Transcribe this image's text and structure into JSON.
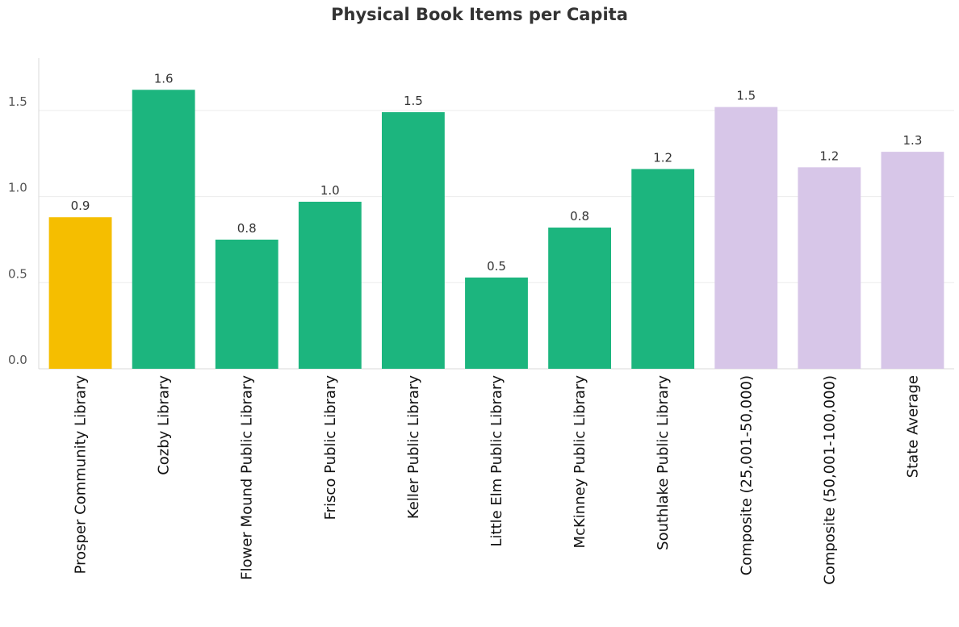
{
  "chart_data": {
    "type": "bar",
    "title": "Physical Book Items per Capita",
    "xlabel": "",
    "ylabel": "",
    "ylim": [
      0,
      1.8
    ],
    "yticks": [
      "0.0",
      "0.5",
      "1.0",
      "1.5"
    ],
    "grid": true,
    "categories": [
      "Prosper Community Library",
      "Cozby Library",
      "Flower Mound Public Library",
      "Frisco Public Library",
      "Keller Public Library",
      "Little Elm Public Library",
      "McKinney Public Library",
      "Southlake Public Library",
      "Composite (25,001-50,000)",
      "Composite (50,001-100,000)",
      "State Average"
    ],
    "values": [
      0.88,
      1.62,
      0.75,
      0.97,
      1.49,
      0.53,
      0.82,
      1.16,
      1.52,
      1.17,
      1.26
    ],
    "labels": [
      "0.9",
      "1.6",
      "0.8",
      "1.0",
      "1.5",
      "0.5",
      "0.8",
      "1.2",
      "1.5",
      "1.2",
      "1.3"
    ],
    "colors": [
      "#F5BE00",
      "#1CB57E",
      "#1CB57E",
      "#1CB57E",
      "#1CB57E",
      "#1CB57E",
      "#1CB57E",
      "#1CB57E",
      "#D7C6E8",
      "#D7C6E8",
      "#D7C6E8"
    ]
  }
}
